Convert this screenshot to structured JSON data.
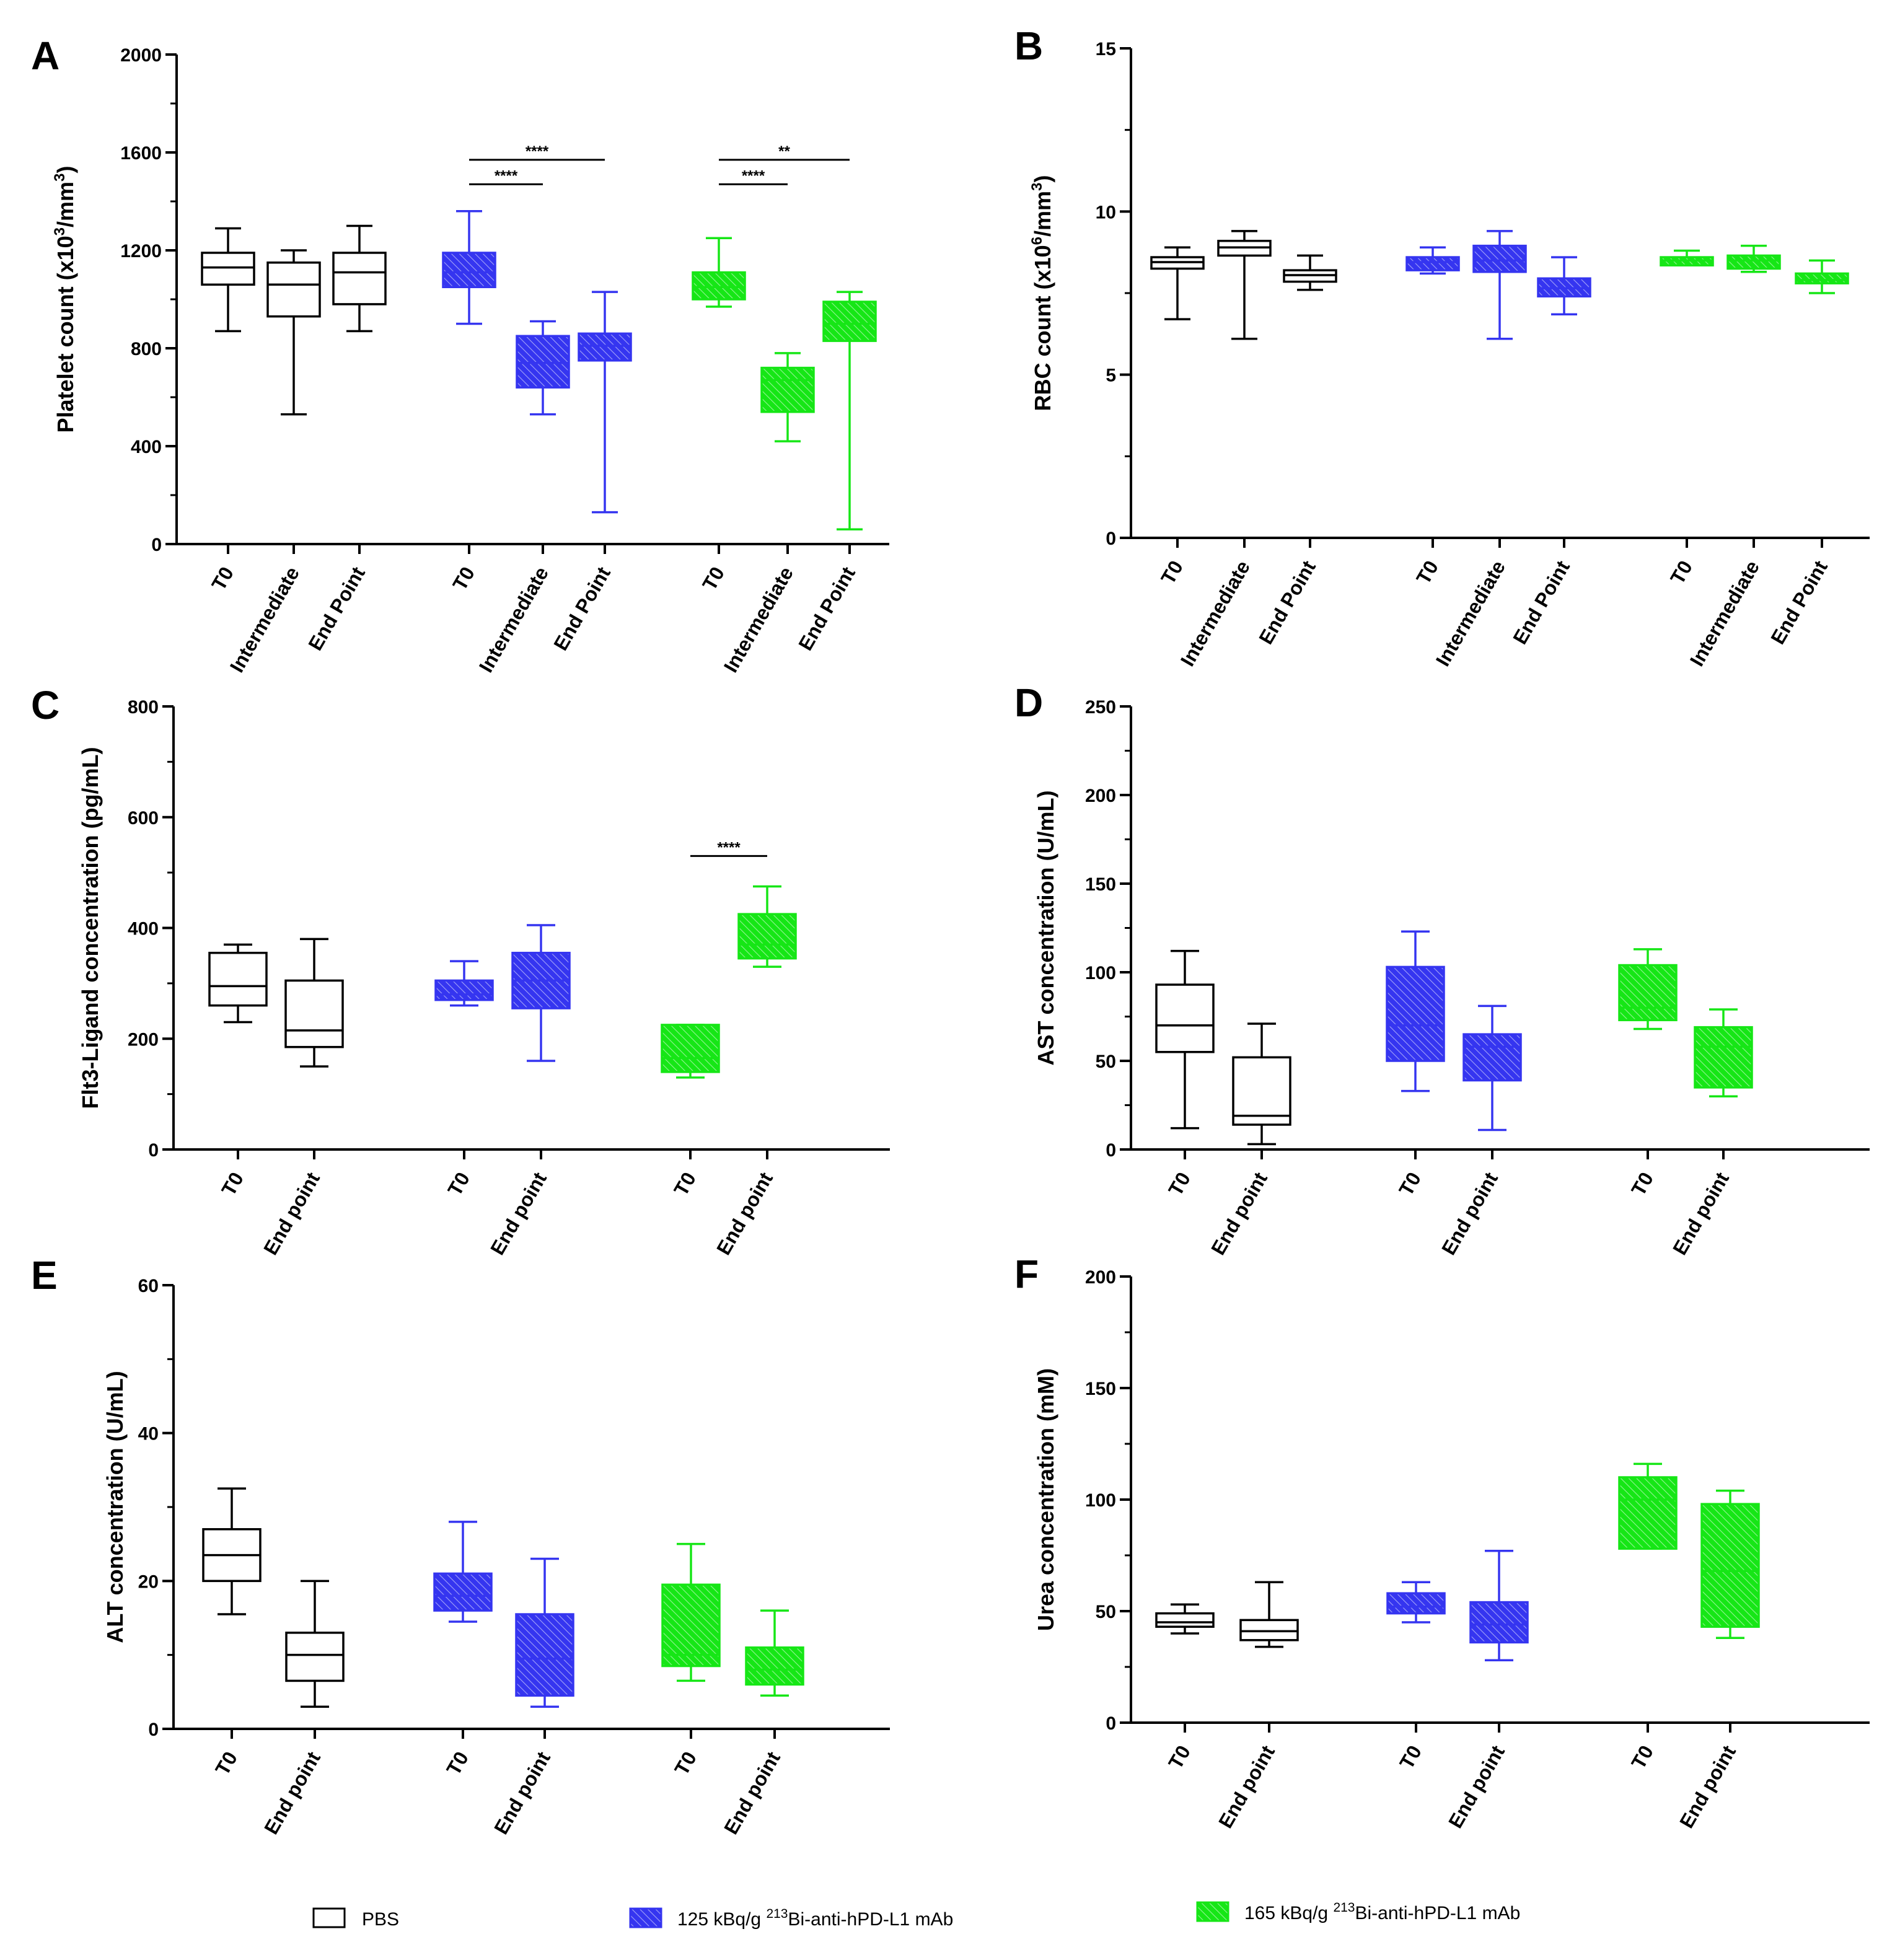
{
  "colors": {
    "PBS": "#000000",
    "Bi125": "#3535f0",
    "Bi165": "#16e616"
  },
  "legend": [
    {
      "key": "PBS",
      "label": "PBS",
      "prefix": "PBS",
      "sup": "",
      "suffix": ""
    },
    {
      "key": "Bi125",
      "label": "125 kBq/g 213Bi-anti-hPD-L1 mAb",
      "prefix": "125 kBq/g ",
      "sup": "213",
      "suffix": "Bi-anti-hPD-L1 mAb"
    },
    {
      "key": "Bi165",
      "label": "165 kBq/g 213Bi-anti-hPD-L1 mAb",
      "prefix": "165 kBq/g ",
      "sup": "213",
      "suffix": "Bi-anti-hPD-L1 mAb"
    }
  ],
  "chart_data": [
    {
      "panel": "A",
      "type": "box",
      "ylabel": "Platelet count (x10³/mm³)",
      "ylabel_parts": [
        "Platelet count (x10",
        "3",
        "/mm",
        "3",
        ")"
      ],
      "ylim": [
        0,
        2000
      ],
      "yticks": [
        0,
        400,
        800,
        1200,
        1600,
        2000
      ],
      "categories": [
        "T0",
        "Intermediate",
        "End Point",
        "T0",
        "Intermediate",
        "End Point",
        "T0",
        "Intermediate",
        "End Point"
      ],
      "boxes": [
        {
          "group": "PBS",
          "min": 870,
          "q1": 1060,
          "median": 1130,
          "q3": 1190,
          "max": 1290
        },
        {
          "group": "PBS",
          "min": 530,
          "q1": 930,
          "median": 1060,
          "q3": 1150,
          "max": 1200
        },
        {
          "group": "PBS",
          "min": 870,
          "q1": 980,
          "median": 1110,
          "q3": 1190,
          "max": 1300
        },
        {
          "group": "Bi125",
          "min": 900,
          "q1": 1050,
          "median": 1110,
          "q3": 1190,
          "max": 1360
        },
        {
          "group": "Bi125",
          "min": 530,
          "q1": 640,
          "median": 740,
          "q3": 850,
          "max": 910
        },
        {
          "group": "Bi125",
          "min": 130,
          "q1": 750,
          "median": 810,
          "q3": 860,
          "max": 1030
        },
        {
          "group": "Bi165",
          "min": 970,
          "q1": 1000,
          "median": 1050,
          "q3": 1110,
          "max": 1250
        },
        {
          "group": "Bi165",
          "min": 420,
          "q1": 540,
          "median": 670,
          "q3": 720,
          "max": 780
        },
        {
          "group": "Bi165",
          "min": 60,
          "q1": 830,
          "median": 900,
          "q3": 990,
          "max": 1030
        }
      ],
      "significance": [
        {
          "from": 3,
          "to": 5,
          "y": 1570,
          "label": "****"
        },
        {
          "from": 3,
          "to": 4,
          "y": 1470,
          "label": "****"
        },
        {
          "from": 6,
          "to": 8,
          "y": 1570,
          "label": "**"
        },
        {
          "from": 6,
          "to": 7,
          "y": 1470,
          "label": "****"
        }
      ]
    },
    {
      "panel": "B",
      "type": "box",
      "ylabel": "RBC count (x10⁶/mm³)",
      "ylabel_parts": [
        "RBC count (x10",
        "6",
        "/mm",
        "3",
        ")"
      ],
      "ylim": [
        0,
        15
      ],
      "yticks": [
        0,
        5,
        10,
        15
      ],
      "categories": [
        "T0",
        "Intermediate",
        "End Point",
        "T0",
        "Intermediate",
        "End Point",
        "T0",
        "Intermediate",
        "End Point"
      ],
      "boxes": [
        {
          "group": "PBS",
          "min": 6.7,
          "q1": 8.25,
          "median": 8.45,
          "q3": 8.6,
          "max": 8.9
        },
        {
          "group": "PBS",
          "min": 6.1,
          "q1": 8.65,
          "median": 8.9,
          "q3": 9.1,
          "max": 9.4
        },
        {
          "group": "PBS",
          "min": 7.6,
          "q1": 7.85,
          "median": 8.05,
          "q3": 8.2,
          "max": 8.65
        },
        {
          "group": "Bi125",
          "min": 8.1,
          "q1": 8.2,
          "median": 8.45,
          "q3": 8.6,
          "max": 8.9
        },
        {
          "group": "Bi125",
          "min": 6.1,
          "q1": 8.15,
          "median": 8.5,
          "q3": 8.95,
          "max": 9.4
        },
        {
          "group": "Bi125",
          "min": 6.85,
          "q1": 7.4,
          "median": 7.65,
          "q3": 7.95,
          "max": 8.6
        },
        {
          "group": "Bi165",
          "min": 8.35,
          "q1": 8.35,
          "median": 8.5,
          "q3": 8.6,
          "max": 8.8
        },
        {
          "group": "Bi165",
          "min": 8.15,
          "q1": 8.25,
          "median": 8.5,
          "q3": 8.65,
          "max": 8.95
        },
        {
          "group": "Bi165",
          "min": 7.5,
          "q1": 7.8,
          "median": 7.9,
          "q3": 8.1,
          "max": 8.5
        }
      ],
      "significance": []
    },
    {
      "panel": "C",
      "type": "box",
      "ylabel": "Flt3-Ligand concentration (pg/mL)",
      "ylabel_parts": [
        "Flt3-Ligand concentration (pg/mL)",
        "",
        "",
        "",
        ""
      ],
      "ylim": [
        0,
        800
      ],
      "yticks": [
        0,
        200,
        400,
        600,
        800
      ],
      "categories": [
        "T0",
        "End point",
        "T0",
        "End point",
        "T0",
        "End point"
      ],
      "boxes": [
        {
          "group": "PBS",
          "min": 230,
          "q1": 260,
          "median": 295,
          "q3": 355,
          "max": 370
        },
        {
          "group": "PBS",
          "min": 150,
          "q1": 185,
          "median": 215,
          "q3": 305,
          "max": 380
        },
        {
          "group": "Bi125",
          "min": 260,
          "q1": 270,
          "median": 280,
          "q3": 305,
          "max": 340
        },
        {
          "group": "Bi125",
          "min": 160,
          "q1": 255,
          "median": 305,
          "q3": 355,
          "max": 405
        },
        {
          "group": "Bi165",
          "min": 130,
          "q1": 140,
          "median": 165,
          "q3": 225,
          "max": 225
        },
        {
          "group": "Bi165",
          "min": 330,
          "q1": 345,
          "median": 370,
          "q3": 425,
          "max": 475
        }
      ],
      "significance": [
        {
          "from": 4,
          "to": 5,
          "y": 530,
          "label": "****"
        }
      ]
    },
    {
      "panel": "D",
      "type": "box",
      "ylabel": "AST concentration (U/mL)",
      "ylabel_parts": [
        "AST concentration (U/mL)",
        "",
        "",
        "",
        ""
      ],
      "ylim": [
        0,
        250
      ],
      "yticks": [
        0,
        50,
        100,
        150,
        200,
        250
      ],
      "categories": [
        "T0",
        "End point",
        "T0",
        "End point",
        "T0",
        "End point"
      ],
      "boxes": [
        {
          "group": "PBS",
          "min": 12,
          "q1": 55,
          "median": 70,
          "q3": 93,
          "max": 112
        },
        {
          "group": "PBS",
          "min": 3,
          "q1": 14,
          "median": 19,
          "q3": 52,
          "max": 71
        },
        {
          "group": "Bi125",
          "min": 33,
          "q1": 50,
          "median": 70,
          "q3": 103,
          "max": 123
        },
        {
          "group": "Bi125",
          "min": 11,
          "q1": 39,
          "median": 58,
          "q3": 65,
          "max": 81
        },
        {
          "group": "Bi165",
          "min": 68,
          "q1": 73,
          "median": 80,
          "q3": 104,
          "max": 113
        },
        {
          "group": "Bi165",
          "min": 30,
          "q1": 35,
          "median": 58,
          "q3": 69,
          "max": 79
        }
      ],
      "significance": []
    },
    {
      "panel": "E",
      "type": "box",
      "ylabel": "ALT concentration (U/mL)",
      "ylabel_parts": [
        "ALT concentration (U/mL)",
        "",
        "",
        "",
        ""
      ],
      "ylim": [
        0,
        60
      ],
      "yticks": [
        0,
        20,
        40,
        60
      ],
      "categories": [
        "T0",
        "End point",
        "T0",
        "End point",
        "T0",
        "End point"
      ],
      "boxes": [
        {
          "group": "PBS",
          "min": 15.5,
          "q1": 20,
          "median": 23.5,
          "q3": 27,
          "max": 32.5
        },
        {
          "group": "PBS",
          "min": 3,
          "q1": 6.5,
          "median": 10,
          "q3": 13,
          "max": 20
        },
        {
          "group": "Bi125",
          "min": 14.5,
          "q1": 16,
          "median": 18,
          "q3": 21,
          "max": 28
        },
        {
          "group": "Bi125",
          "min": 3,
          "q1": 4.5,
          "median": 9.5,
          "q3": 15.5,
          "max": 23
        },
        {
          "group": "Bi165",
          "min": 6.5,
          "q1": 8.5,
          "median": 10,
          "q3": 19.5,
          "max": 25
        },
        {
          "group": "Bi165",
          "min": 4.5,
          "q1": 6,
          "median": 8,
          "q3": 11,
          "max": 16
        }
      ],
      "significance": []
    },
    {
      "panel": "F",
      "type": "box",
      "ylabel": "Urea concentration (mM)",
      "ylabel_parts": [
        "Urea concentration (mM)",
        "",
        "",
        "",
        ""
      ],
      "ylim": [
        0,
        200
      ],
      "yticks": [
        0,
        50,
        100,
        150,
        200
      ],
      "categories": [
        "T0",
        "End point",
        "T0",
        "End point",
        "T0",
        "End point"
      ],
      "boxes": [
        {
          "group": "PBS",
          "min": 40,
          "q1": 43,
          "median": 45,
          "q3": 49,
          "max": 53
        },
        {
          "group": "PBS",
          "min": 34,
          "q1": 37,
          "median": 41,
          "q3": 46,
          "max": 63
        },
        {
          "group": "Bi125",
          "min": 45,
          "q1": 49,
          "median": 52,
          "q3": 58,
          "max": 63
        },
        {
          "group": "Bi125",
          "min": 28,
          "q1": 36,
          "median": 44,
          "q3": 54,
          "max": 77
        },
        {
          "group": "Bi165",
          "min": 78,
          "q1": 78,
          "median": 100,
          "q3": 110,
          "max": 116
        },
        {
          "group": "Bi165",
          "min": 38,
          "q1": 43,
          "median": 68,
          "q3": 98,
          "max": 104
        }
      ],
      "significance": []
    }
  ]
}
